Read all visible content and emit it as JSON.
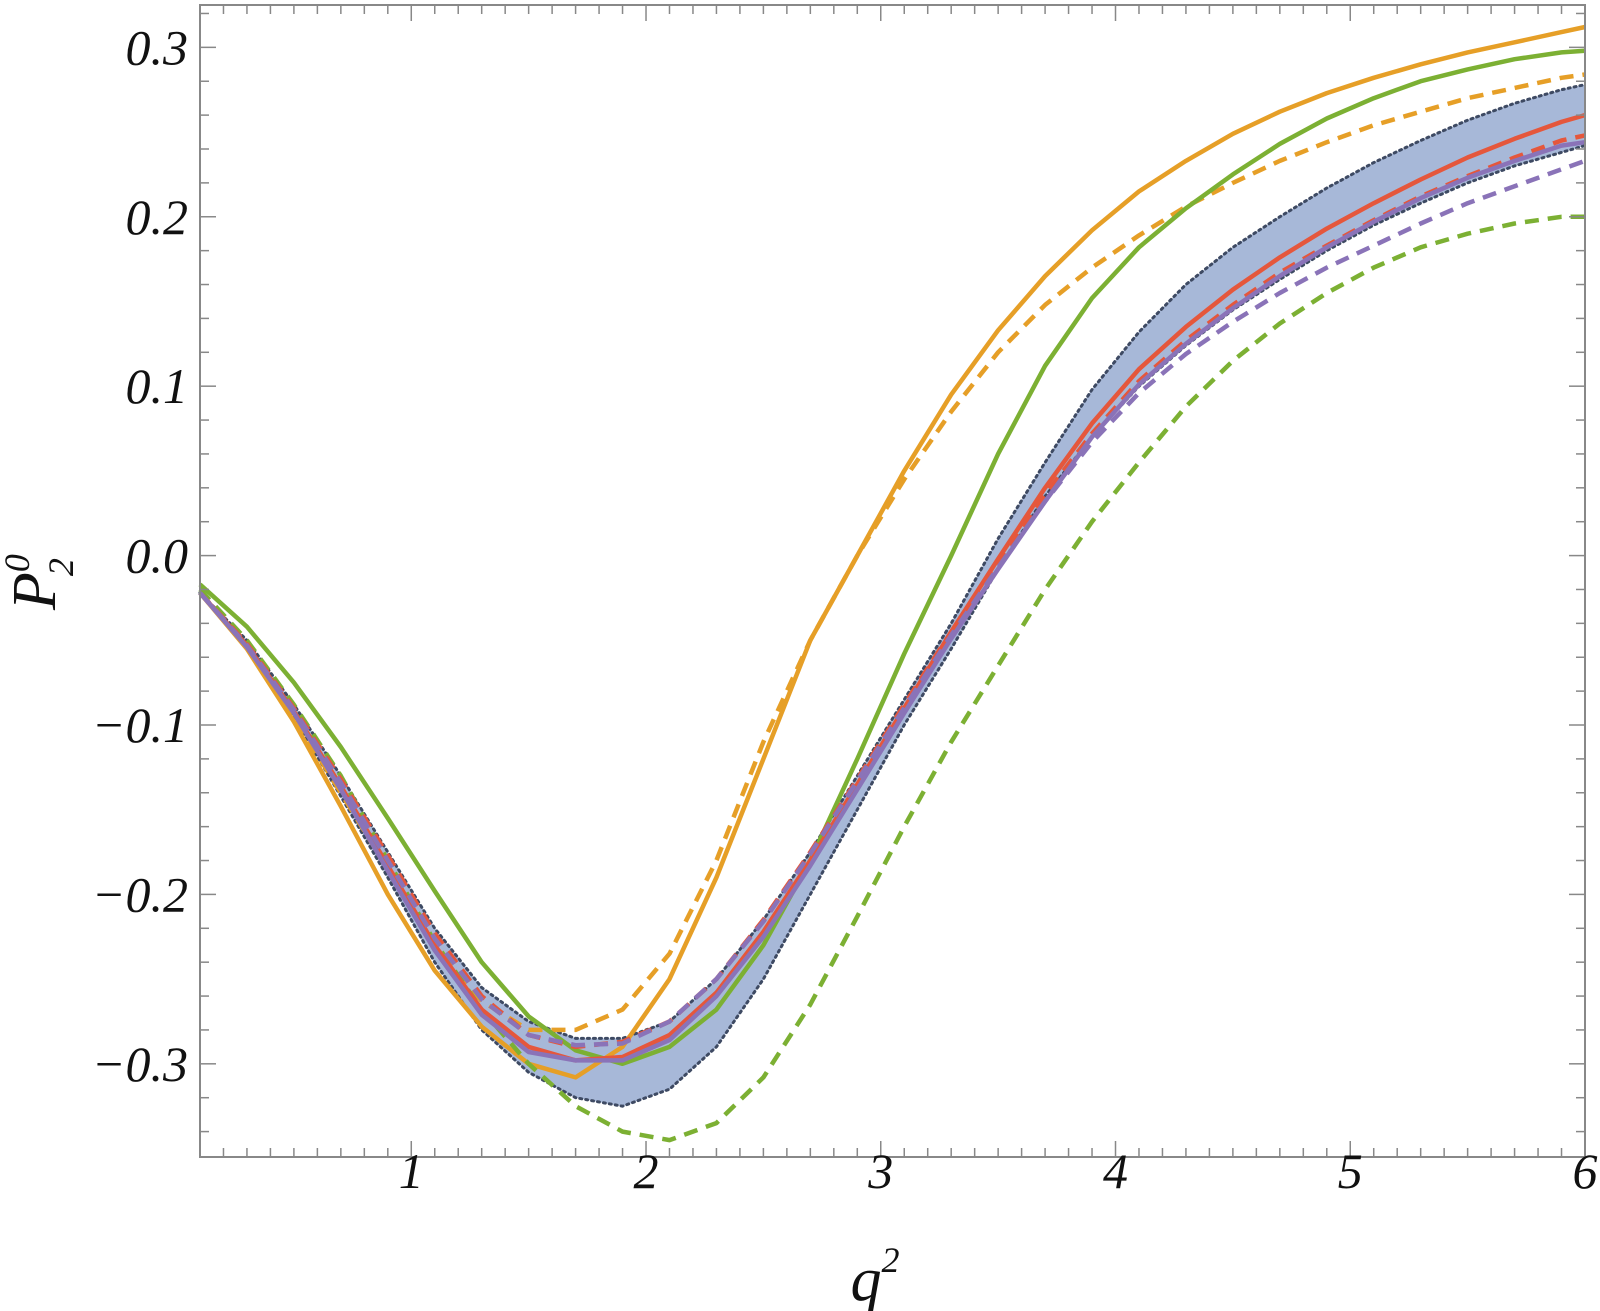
{
  "chart_data": {
    "type": "line",
    "xlabel": "q",
    "xlabel_sup": "2",
    "ylabel": "P",
    "ylabel_sup": "0",
    "ylabel_sub": "2",
    "xlim": [
      0.1,
      6
    ],
    "ylim": [
      -0.355,
      0.325
    ],
    "x_ticks": [
      1,
      2,
      3,
      4,
      5,
      6
    ],
    "x_tick_labels": [
      "1",
      "2",
      "3",
      "4",
      "5",
      "6"
    ],
    "y_ticks": [
      -0.3,
      -0.2,
      -0.1,
      0.0,
      0.1,
      0.2,
      0.3
    ],
    "y_tick_labels": [
      "−0.3",
      "−0.2",
      "−0.1",
      "0.0",
      "0.1",
      "0.2",
      "0.3"
    ],
    "grid": false,
    "legend": "none",
    "band": {
      "color": "#a7b8d8",
      "edge_color": "#3e4a63",
      "x": [
        0.1,
        0.3,
        0.5,
        0.7,
        0.9,
        1.1,
        1.3,
        1.5,
        1.7,
        1.9,
        2.1,
        2.3,
        2.5,
        2.7,
        2.9,
        3.1,
        3.3,
        3.5,
        3.7,
        3.9,
        4.1,
        4.3,
        4.5,
        4.7,
        4.9,
        5.1,
        5.3,
        5.5,
        5.7,
        5.9,
        6.0
      ],
      "upper": [
        -0.022,
        -0.05,
        -0.088,
        -0.13,
        -0.175,
        -0.22,
        -0.255,
        -0.275,
        -0.285,
        -0.285,
        -0.275,
        -0.25,
        -0.215,
        -0.175,
        -0.13,
        -0.085,
        -0.04,
        0.01,
        0.055,
        0.098,
        0.132,
        0.16,
        0.182,
        0.2,
        0.217,
        0.232,
        0.245,
        0.257,
        0.267,
        0.275,
        0.278
      ],
      "lower": [
        -0.022,
        -0.054,
        -0.095,
        -0.142,
        -0.19,
        -0.24,
        -0.28,
        -0.305,
        -0.32,
        -0.325,
        -0.315,
        -0.29,
        -0.25,
        -0.2,
        -0.15,
        -0.1,
        -0.055,
        -0.008,
        0.035,
        0.07,
        0.1,
        0.124,
        0.145,
        0.163,
        0.18,
        0.195,
        0.208,
        0.22,
        0.23,
        0.238,
        0.242
      ]
    },
    "series": [
      {
        "color": "#e69f27",
        "style": "solid",
        "x": [
          0.1,
          0.3,
          0.5,
          0.7,
          0.9,
          1.1,
          1.3,
          1.5,
          1.7,
          1.9,
          2.1,
          2.3,
          2.5,
          2.7,
          2.9,
          3.1,
          3.3,
          3.5,
          3.7,
          3.9,
          4.1,
          4.3,
          4.5,
          4.7,
          4.9,
          5.1,
          5.3,
          5.5,
          5.7,
          5.9,
          6.0
        ],
        "y": [
          -0.022,
          -0.055,
          -0.098,
          -0.148,
          -0.2,
          -0.245,
          -0.278,
          -0.3,
          -0.308,
          -0.29,
          -0.25,
          -0.19,
          -0.12,
          -0.05,
          0.0,
          0.05,
          0.095,
          0.133,
          0.165,
          0.192,
          0.215,
          0.233,
          0.249,
          0.262,
          0.273,
          0.282,
          0.29,
          0.297,
          0.303,
          0.309,
          0.312
        ]
      },
      {
        "color": "#e69f27",
        "style": "dashed",
        "x": [
          0.1,
          0.3,
          0.5,
          0.7,
          0.9,
          1.1,
          1.3,
          1.5,
          1.7,
          1.9,
          2.1,
          2.3,
          2.5,
          2.7,
          2.9,
          3.1,
          3.3,
          3.5,
          3.7,
          3.9,
          4.1,
          4.3,
          4.5,
          4.7,
          4.9,
          5.1,
          5.3,
          5.5,
          5.7,
          5.9,
          6.0
        ],
        "y": [
          -0.022,
          -0.054,
          -0.095,
          -0.14,
          -0.185,
          -0.23,
          -0.263,
          -0.28,
          -0.28,
          -0.268,
          -0.235,
          -0.18,
          -0.11,
          -0.05,
          0.0,
          0.045,
          0.085,
          0.12,
          0.148,
          0.17,
          0.189,
          0.206,
          0.22,
          0.233,
          0.244,
          0.254,
          0.262,
          0.27,
          0.276,
          0.282,
          0.284
        ]
      },
      {
        "color": "#7cb033",
        "style": "solid",
        "x": [
          0.1,
          0.3,
          0.5,
          0.7,
          0.9,
          1.1,
          1.3,
          1.5,
          1.7,
          1.9,
          2.1,
          2.3,
          2.5,
          2.7,
          2.9,
          3.1,
          3.3,
          3.5,
          3.7,
          3.9,
          4.1,
          4.3,
          4.5,
          4.7,
          4.9,
          5.1,
          5.3,
          5.5,
          5.7,
          5.9,
          6.0
        ],
        "y": [
          -0.017,
          -0.042,
          -0.075,
          -0.113,
          -0.155,
          -0.198,
          -0.24,
          -0.272,
          -0.292,
          -0.3,
          -0.29,
          -0.268,
          -0.23,
          -0.18,
          -0.12,
          -0.058,
          0.0,
          0.06,
          0.112,
          0.152,
          0.182,
          0.205,
          0.225,
          0.243,
          0.258,
          0.27,
          0.28,
          0.287,
          0.293,
          0.297,
          0.298
        ]
      },
      {
        "color": "#7cb033",
        "style": "dashed",
        "x": [
          0.1,
          0.3,
          0.5,
          0.7,
          0.9,
          1.1,
          1.3,
          1.5,
          1.7,
          1.9,
          2.1,
          2.3,
          2.5,
          2.7,
          2.9,
          3.1,
          3.3,
          3.5,
          3.7,
          3.9,
          4.1,
          4.3,
          4.5,
          4.7,
          4.9,
          5.1,
          5.3,
          5.5,
          5.7,
          5.9,
          6.0
        ],
        "y": [
          -0.02,
          -0.05,
          -0.088,
          -0.13,
          -0.18,
          -0.228,
          -0.268,
          -0.3,
          -0.325,
          -0.34,
          -0.345,
          -0.335,
          -0.308,
          -0.265,
          -0.213,
          -0.16,
          -0.11,
          -0.065,
          -0.02,
          0.02,
          0.055,
          0.088,
          0.115,
          0.137,
          0.155,
          0.17,
          0.182,
          0.19,
          0.196,
          0.2,
          0.2
        ]
      },
      {
        "color": "#e5573c",
        "style": "solid",
        "x": [
          0.1,
          0.3,
          0.5,
          0.7,
          0.9,
          1.1,
          1.3,
          1.5,
          1.7,
          1.9,
          2.1,
          2.3,
          2.5,
          2.7,
          2.9,
          3.1,
          3.3,
          3.5,
          3.7,
          3.9,
          4.1,
          4.3,
          4.5,
          4.7,
          4.9,
          5.1,
          5.3,
          5.5,
          5.7,
          5.9,
          6.0
        ],
        "y": [
          -0.022,
          -0.053,
          -0.092,
          -0.136,
          -0.183,
          -0.23,
          -0.268,
          -0.29,
          -0.298,
          -0.296,
          -0.283,
          -0.258,
          -0.222,
          -0.18,
          -0.135,
          -0.09,
          -0.045,
          -0.002,
          0.04,
          0.078,
          0.11,
          0.135,
          0.157,
          0.176,
          0.193,
          0.208,
          0.222,
          0.235,
          0.246,
          0.256,
          0.26
        ]
      },
      {
        "color": "#e5573c",
        "style": "dashed",
        "x": [
          0.1,
          0.3,
          0.5,
          0.7,
          0.9,
          1.1,
          1.3,
          1.5,
          1.7,
          1.9,
          2.1,
          2.3,
          2.5,
          2.7,
          2.9,
          3.1,
          3.3,
          3.5,
          3.7,
          3.9,
          4.1,
          4.3,
          4.5,
          4.7,
          4.9,
          5.1,
          5.3,
          5.5,
          5.7,
          5.9,
          6.0
        ],
        "y": [
          -0.022,
          -0.052,
          -0.09,
          -0.132,
          -0.177,
          -0.223,
          -0.26,
          -0.283,
          -0.29,
          -0.287,
          -0.275,
          -0.25,
          -0.215,
          -0.175,
          -0.132,
          -0.088,
          -0.045,
          -0.003,
          0.036,
          0.072,
          0.103,
          0.127,
          0.148,
          0.167,
          0.183,
          0.198,
          0.212,
          0.224,
          0.235,
          0.245,
          0.248
        ]
      },
      {
        "color": "#8a73b8",
        "style": "solid",
        "x": [
          0.1,
          0.3,
          0.5,
          0.7,
          0.9,
          1.1,
          1.3,
          1.5,
          1.7,
          1.9,
          2.1,
          2.3,
          2.5,
          2.7,
          2.9,
          3.1,
          3.3,
          3.5,
          3.7,
          3.9,
          4.1,
          4.3,
          4.5,
          4.7,
          4.9,
          5.1,
          5.3,
          5.5,
          5.7,
          5.9,
          6.0
        ],
        "y": [
          -0.022,
          -0.054,
          -0.093,
          -0.138,
          -0.186,
          -0.233,
          -0.271,
          -0.293,
          -0.298,
          -0.298,
          -0.286,
          -0.26,
          -0.225,
          -0.183,
          -0.138,
          -0.093,
          -0.049,
          -0.008,
          0.032,
          0.07,
          0.101,
          0.125,
          0.146,
          0.165,
          0.182,
          0.197,
          0.211,
          0.223,
          0.233,
          0.242,
          0.244
        ]
      },
      {
        "color": "#8a73b8",
        "style": "dashed",
        "x": [
          0.1,
          0.3,
          0.5,
          0.7,
          0.9,
          1.1,
          1.3,
          1.5,
          1.7,
          1.9,
          2.1,
          2.3,
          2.5,
          2.7,
          2.9,
          3.1,
          3.3,
          3.5,
          3.7,
          3.9,
          4.1,
          4.3,
          4.5,
          4.7,
          4.9,
          5.1,
          5.3,
          5.5,
          5.7,
          5.9,
          6.0
        ],
        "y": [
          -0.022,
          -0.053,
          -0.091,
          -0.134,
          -0.18,
          -0.226,
          -0.262,
          -0.283,
          -0.289,
          -0.288,
          -0.275,
          -0.25,
          -0.216,
          -0.176,
          -0.133,
          -0.09,
          -0.047,
          -0.007,
          0.032,
          0.067,
          0.096,
          0.119,
          0.138,
          0.155,
          0.17,
          0.183,
          0.196,
          0.208,
          0.218,
          0.228,
          0.233
        ]
      }
    ]
  }
}
